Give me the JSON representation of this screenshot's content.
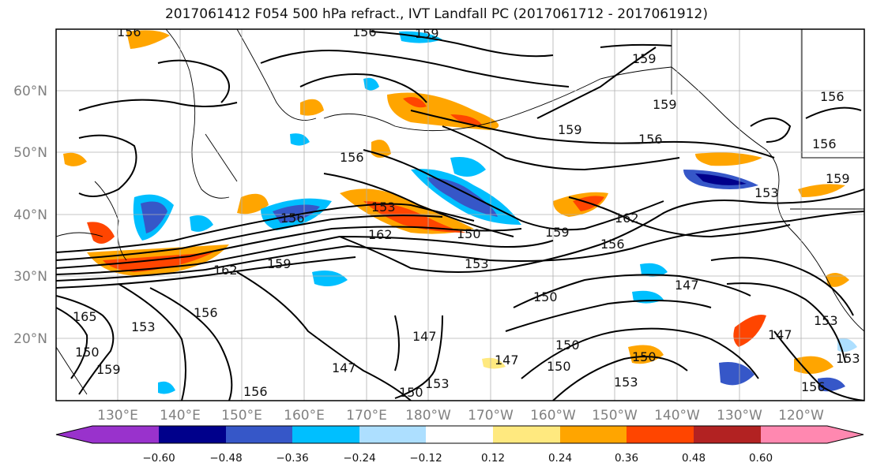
{
  "title": "2017061412 F054 500 hPa refract., IVT Landfall PC (2017061712 - 2017061912)",
  "lat_labels": [
    "60°N",
    "50°N",
    "40°N",
    "30°N",
    "20°N"
  ],
  "lon_labels": [
    "130°E",
    "140°E",
    "150°E",
    "160°E",
    "170°E",
    "180°W",
    "170°W",
    "160°W",
    "150°W",
    "140°W",
    "130°W",
    "120°W"
  ],
  "colorbar": {
    "colors": [
      "#9932CC",
      "#00008B",
      "#3657C8",
      "#00BFFF",
      "#ADDFFF",
      "#FFFFFF",
      "#FFE97F",
      "#FFA500",
      "#FF4500",
      "#B22222",
      "#FF88B0"
    ],
    "tick_labels": [
      "−0.60",
      "−0.48",
      "−0.36",
      "−0.24",
      "−0.12",
      "0.12",
      "0.24",
      "0.36",
      "0.48",
      "0.60"
    ]
  },
  "contour_labels": [
    "156",
    "159",
    "159",
    "156",
    "159",
    "159",
    "156",
    "156",
    "156",
    "156",
    "153",
    "159",
    "153",
    "150",
    "162",
    "159",
    "162",
    "156",
    "153",
    "156",
    "159",
    "162",
    "156",
    "150",
    "147",
    "165",
    "150",
    "153",
    "159",
    "147",
    "147",
    "147",
    "150",
    "150",
    "153",
    "150",
    "153",
    "156",
    "147",
    "153",
    "153",
    "156",
    "150"
  ]
}
